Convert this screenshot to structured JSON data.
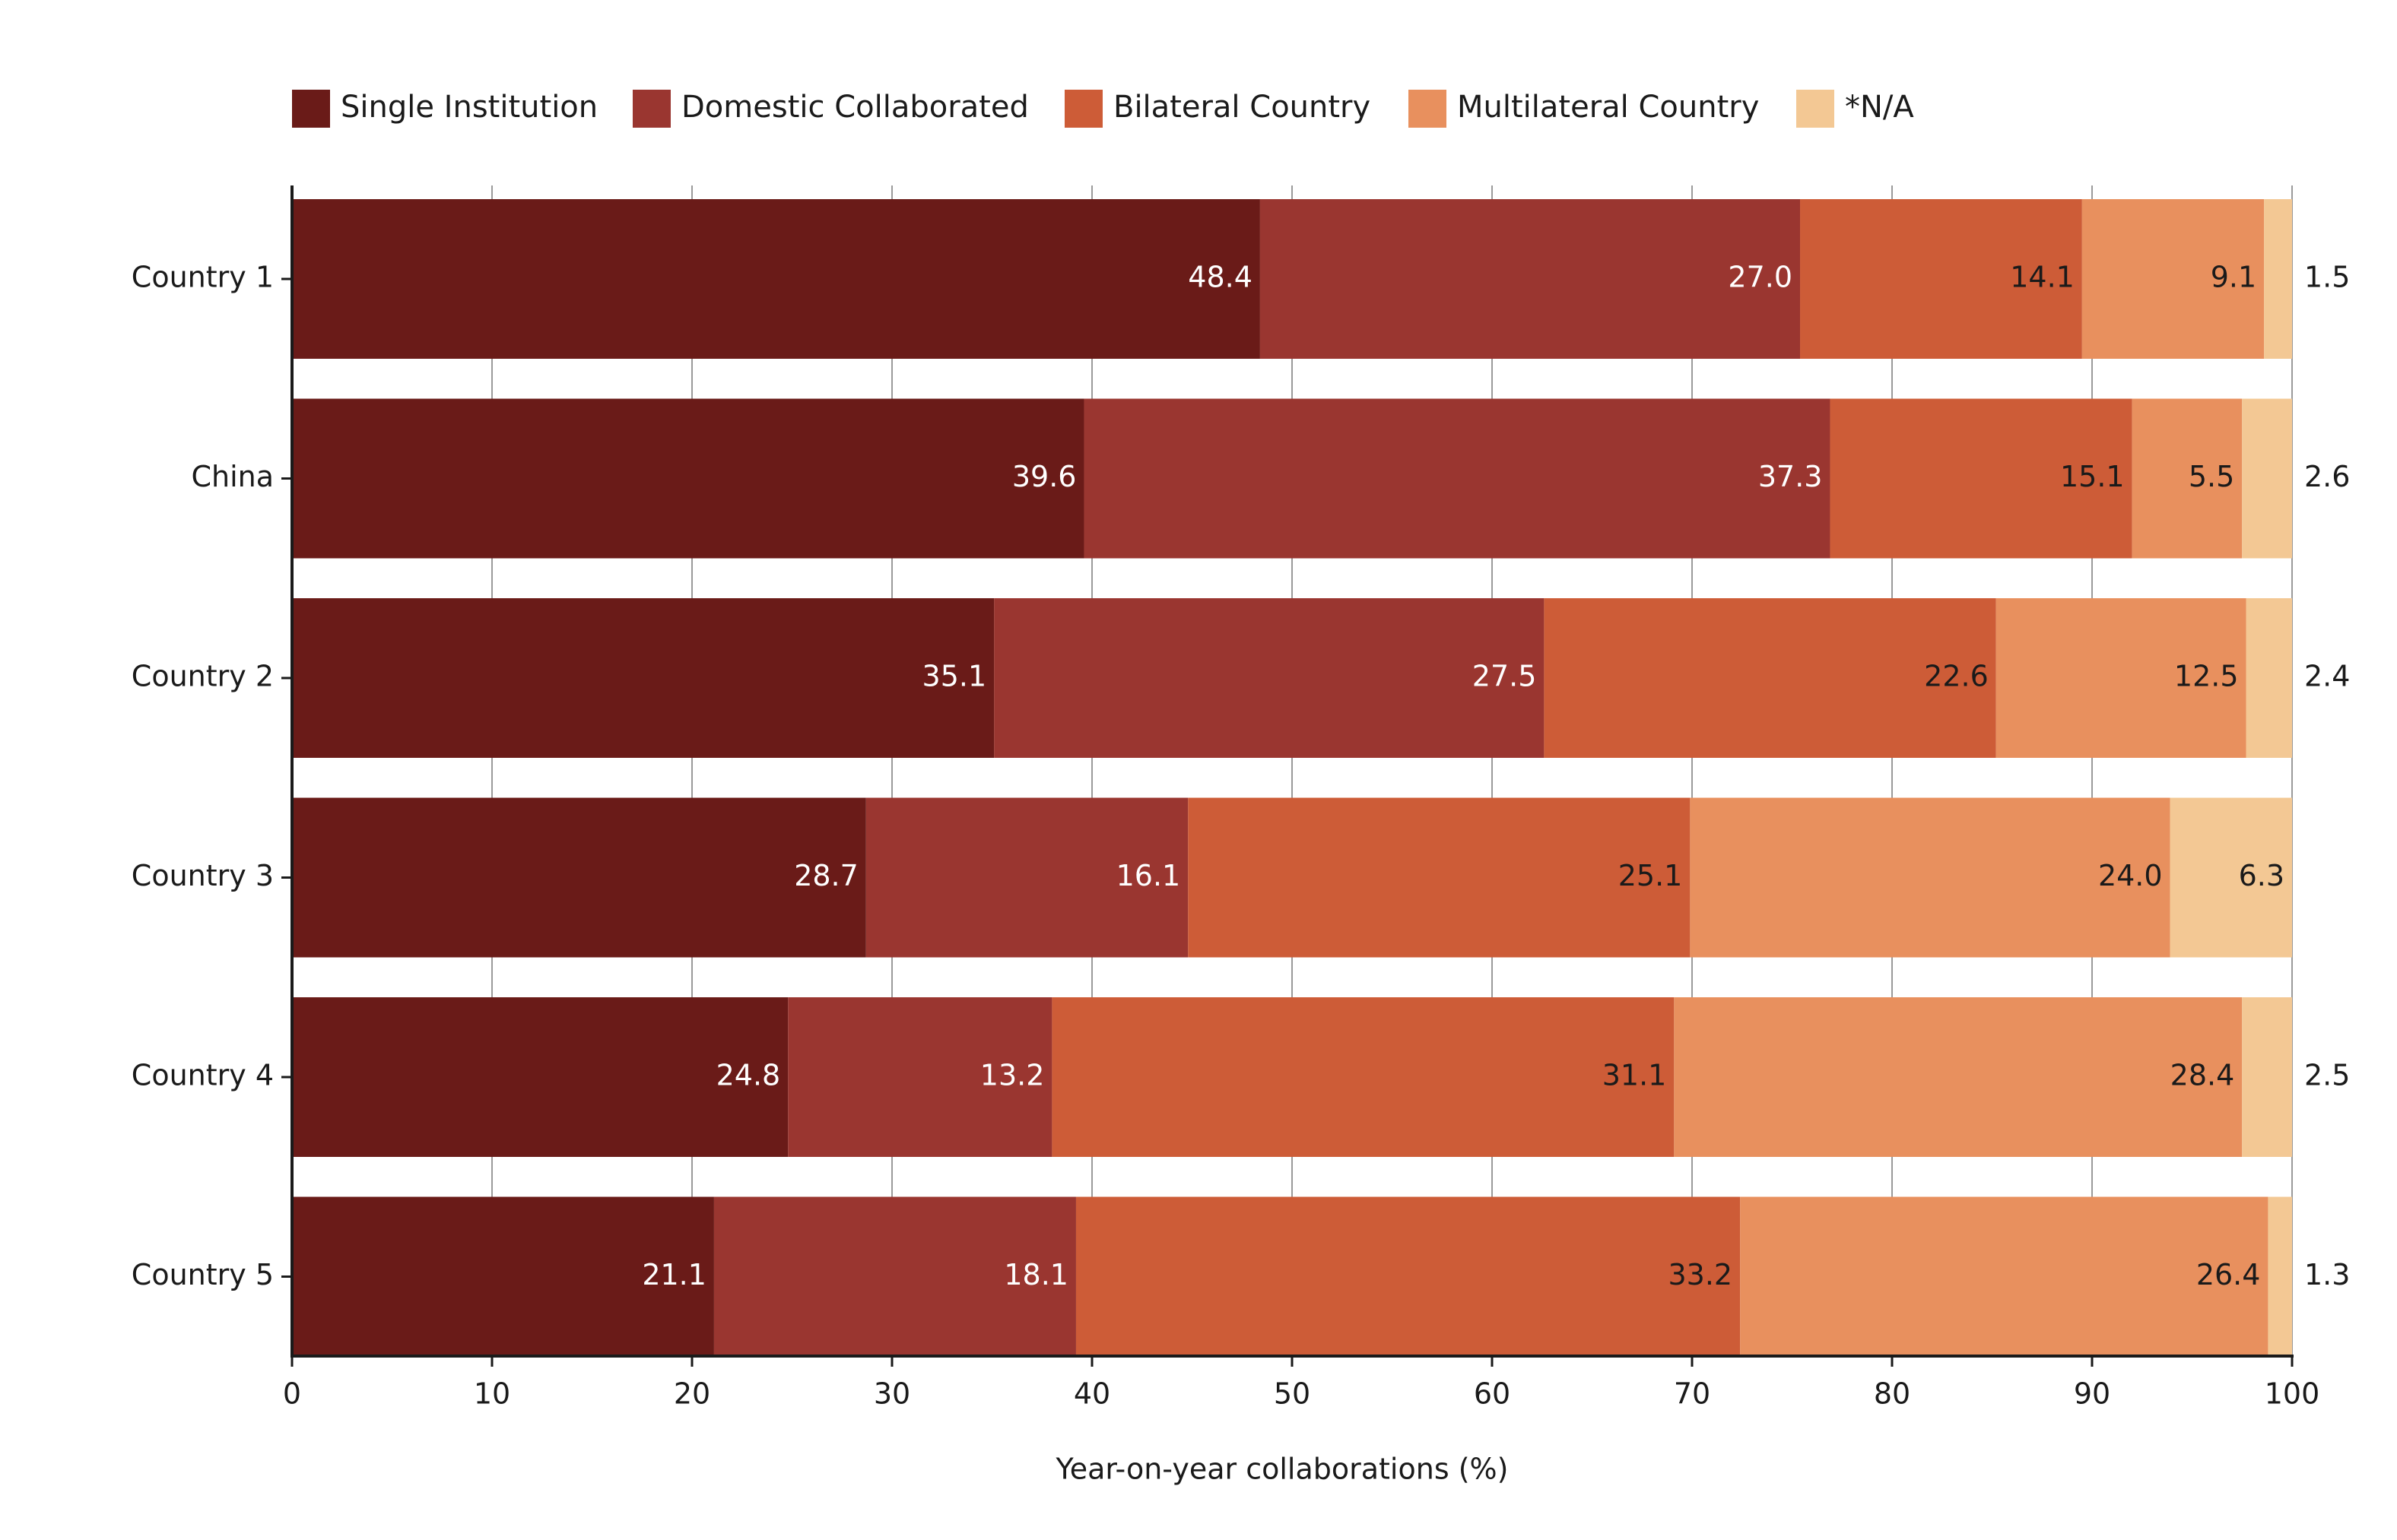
{
  "chart_data": {
    "type": "bar",
    "orientation": "horizontal",
    "stacked": true,
    "categories": [
      "Country 1",
      "China",
      "Country 2",
      "Country 3",
      "Country 4",
      "Country 5"
    ],
    "series": [
      {
        "name": "Single Institution",
        "color": "#6a1b18",
        "values": [
          48.4,
          39.6,
          35.1,
          28.7,
          24.8,
          21.1
        ],
        "label_color": "#ffffff"
      },
      {
        "name": "Domestic Collaborated",
        "color": "#9a3630",
        "values": [
          27.0,
          37.3,
          27.5,
          16.1,
          13.2,
          18.1
        ],
        "label_color": "#ffffff"
      },
      {
        "name": "Bilateral Country",
        "color": "#cd5c37",
        "values": [
          14.1,
          15.1,
          22.6,
          25.1,
          31.1,
          33.2
        ],
        "label_color": "#1a1a1a"
      },
      {
        "name": "Multilateral Country",
        "color": "#e8905e",
        "values": [
          9.1,
          5.5,
          12.5,
          24.0,
          28.4,
          26.4
        ],
        "label_color": "#1a1a1a"
      },
      {
        "name": "*N/A",
        "color": "#f3c894",
        "values": [
          1.5,
          2.6,
          2.4,
          6.3,
          2.5,
          1.3
        ],
        "label_color": "#1a1a1a"
      }
    ],
    "value_labels": [
      [
        "48.4",
        "27.0",
        "14.1",
        "9.1",
        "1.5"
      ],
      [
        "39.6",
        "37.3",
        "15.1",
        "5.5",
        "2.6"
      ],
      [
        "35.1",
        "27.5",
        "22.6",
        "12.5",
        "2.4"
      ],
      [
        "28.7",
        "16.1",
        "25.1",
        "24.0",
        "6.3"
      ],
      [
        "24.8",
        "13.2",
        "31.1",
        "28.4",
        "2.5"
      ],
      [
        "21.1",
        "18.1",
        "33.2",
        "26.4",
        "1.3"
      ]
    ],
    "xlabel": "Year-on-year collaborations (%)",
    "ylabel": "",
    "xlim": [
      0,
      100
    ],
    "x_ticks": [
      "0",
      "10",
      "20",
      "30",
      "40",
      "50",
      "60",
      "70",
      "80",
      "90",
      "100"
    ],
    "grid": "vertical gridlines",
    "legend_position": "top"
  }
}
